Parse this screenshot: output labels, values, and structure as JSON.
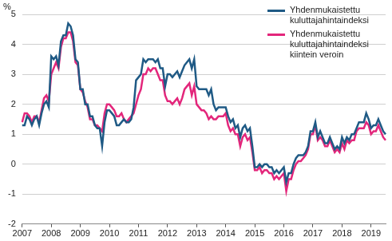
{
  "chart_data": {
    "type": "line",
    "y_label": "%",
    "categories": [
      "2007",
      null,
      null,
      null,
      null,
      null,
      null,
      null,
      null,
      null,
      null,
      null,
      "2008",
      null,
      null,
      null,
      null,
      null,
      null,
      null,
      null,
      null,
      null,
      null,
      "2009",
      null,
      null,
      null,
      null,
      null,
      null,
      null,
      null,
      null,
      null,
      null,
      "2010",
      null,
      null,
      null,
      null,
      null,
      null,
      null,
      null,
      null,
      null,
      null,
      "2011",
      null,
      null,
      null,
      null,
      null,
      null,
      null,
      null,
      null,
      null,
      null,
      "2012",
      null,
      null,
      null,
      null,
      null,
      null,
      null,
      null,
      null,
      null,
      null,
      "2013",
      null,
      null,
      null,
      null,
      null,
      null,
      null,
      null,
      null,
      null,
      null,
      "2014",
      null,
      null,
      null,
      null,
      null,
      null,
      null,
      null,
      null,
      null,
      null,
      "2015",
      null,
      null,
      null,
      null,
      null,
      null,
      null,
      null,
      null,
      null,
      null,
      "2016",
      null,
      null,
      null,
      null,
      null,
      null,
      null,
      null,
      null,
      null,
      null,
      "2017",
      null,
      null,
      null,
      null,
      null,
      null,
      null,
      null,
      null,
      null,
      null,
      "2018",
      null,
      null,
      null,
      null,
      null,
      null,
      null,
      null,
      null,
      null,
      null,
      "2019",
      null,
      null,
      null,
      null,
      null,
      null
    ],
    "series": [
      {
        "name": "Yhdenmukaistettu kuluttajahintaindeksi",
        "color": "#1f5a85",
        "values": [
          1.3,
          1.3,
          1.6,
          1.5,
          1.3,
          1.5,
          1.6,
          1.3,
          1.7,
          2.0,
          2.1,
          1.9,
          3.6,
          3.5,
          3.6,
          3.3,
          4.1,
          4.3,
          4.3,
          4.7,
          4.6,
          4.3,
          3.5,
          3.4,
          2.5,
          2.5,
          2.0,
          2.0,
          1.6,
          1.6,
          1.3,
          1.2,
          1.2,
          0.6,
          1.4,
          1.8,
          1.8,
          1.7,
          1.6,
          1.3,
          1.3,
          1.4,
          1.5,
          1.4,
          1.4,
          1.5,
          1.9,
          2.8,
          2.9,
          3.0,
          3.5,
          3.4,
          3.5,
          3.5,
          3.5,
          3.4,
          3.5,
          3.2,
          3.2,
          2.6,
          3.0,
          3.0,
          2.9,
          3.0,
          3.1,
          2.9,
          3.1,
          3.3,
          3.4,
          3.5,
          3.2,
          3.5,
          2.6,
          2.5,
          2.5,
          2.5,
          2.5,
          2.3,
          2.5,
          2.0,
          1.8,
          1.9,
          1.9,
          1.9,
          1.9,
          1.6,
          1.4,
          1.5,
          1.2,
          1.3,
          0.9,
          1.2,
          1.3,
          1.1,
          1.2,
          0.6,
          -0.1,
          -0.1,
          0.0,
          -0.1,
          0.0,
          0.0,
          -0.1,
          -0.1,
          -0.3,
          -0.2,
          -0.3,
          -0.2,
          -0.1,
          -0.6,
          -0.3,
          -0.3,
          0.0,
          0.2,
          0.3,
          0.3,
          0.3,
          0.4,
          0.6,
          1.1,
          1.1,
          1.4,
          0.9,
          1.1,
          0.9,
          0.7,
          0.7,
          0.9,
          0.7,
          0.5,
          0.6,
          0.5,
          0.9,
          0.7,
          0.9,
          0.8,
          1.0,
          1.0,
          1.2,
          1.4,
          1.4,
          1.4,
          1.7,
          1.5,
          1.2,
          1.3,
          1.3,
          1.5,
          1.3,
          1.1,
          1.0
        ]
      },
      {
        "name": "Yhdenmukaistettu kuluttajahintaindeksi kiintein veroin",
        "color": "#e3267b",
        "values": [
          1.4,
          1.7,
          1.7,
          1.6,
          1.4,
          1.6,
          1.6,
          1.4,
          1.8,
          2.2,
          2.3,
          2.1,
          3.0,
          3.2,
          3.4,
          3.2,
          3.9,
          4.2,
          4.2,
          4.4,
          4.4,
          4.1,
          3.4,
          3.3,
          2.5,
          2.4,
          2.1,
          1.9,
          1.5,
          1.5,
          1.3,
          1.3,
          1.2,
          1.1,
          1.7,
          2.0,
          2.0,
          1.9,
          1.8,
          1.6,
          1.6,
          1.7,
          1.5,
          1.4,
          1.5,
          1.6,
          1.7,
          2.0,
          2.3,
          2.5,
          3.0,
          3.0,
          3.2,
          3.1,
          3.2,
          3.2,
          3.0,
          2.8,
          2.8,
          2.3,
          2.1,
          2.1,
          2.0,
          2.1,
          2.2,
          2.0,
          2.2,
          2.5,
          2.6,
          2.7,
          2.3,
          2.6,
          2.0,
          1.9,
          1.8,
          1.8,
          1.7,
          1.5,
          1.6,
          1.5,
          1.5,
          1.6,
          1.6,
          1.6,
          1.7,
          1.3,
          1.1,
          1.2,
          1.0,
          1.0,
          0.6,
          0.9,
          1.0,
          0.8,
          0.9,
          0.4,
          -0.2,
          -0.2,
          -0.1,
          -0.3,
          -0.2,
          -0.2,
          -0.3,
          -0.3,
          -0.5,
          -0.4,
          -0.5,
          -0.4,
          -0.3,
          -0.9,
          -0.5,
          -0.5,
          -0.2,
          0.0,
          0.1,
          0.1,
          0.2,
          0.3,
          0.5,
          1.0,
          1.0,
          1.3,
          0.8,
          0.9,
          0.8,
          0.6,
          0.6,
          0.8,
          0.6,
          0.4,
          0.5,
          0.4,
          0.7,
          0.5,
          0.8,
          0.7,
          0.8,
          0.8,
          1.1,
          1.2,
          1.2,
          1.2,
          1.4,
          1.3,
          1.0,
          1.1,
          1.1,
          1.3,
          1.1,
          0.9,
          0.8
        ]
      }
    ],
    "ylim": [
      -2,
      5
    ],
    "yticks": [
      -2,
      -1,
      0,
      1,
      2,
      3,
      4,
      5
    ],
    "grid": true,
    "legend": "upper right"
  }
}
